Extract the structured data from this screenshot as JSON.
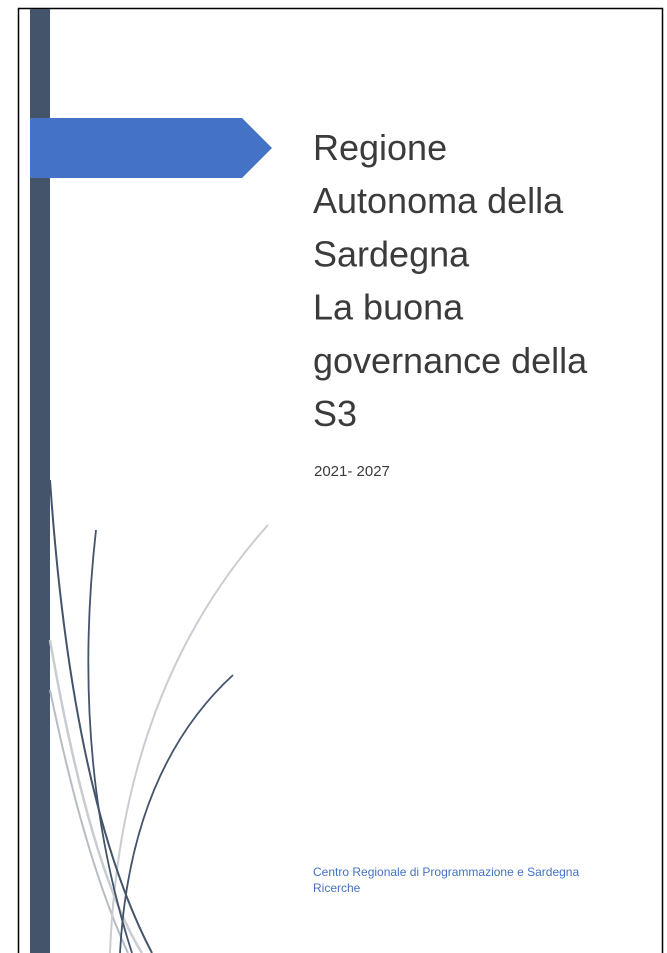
{
  "cover": {
    "title_lines": [
      "Regione",
      "Autonoma della",
      "Sardegna",
      "La buona",
      "governance della",
      "S3"
    ],
    "subtitle": "2021- 2027",
    "footer_lines": [
      "Centro Regionale di Programmazione e Sardegna",
      "Ricerche"
    ]
  }
}
